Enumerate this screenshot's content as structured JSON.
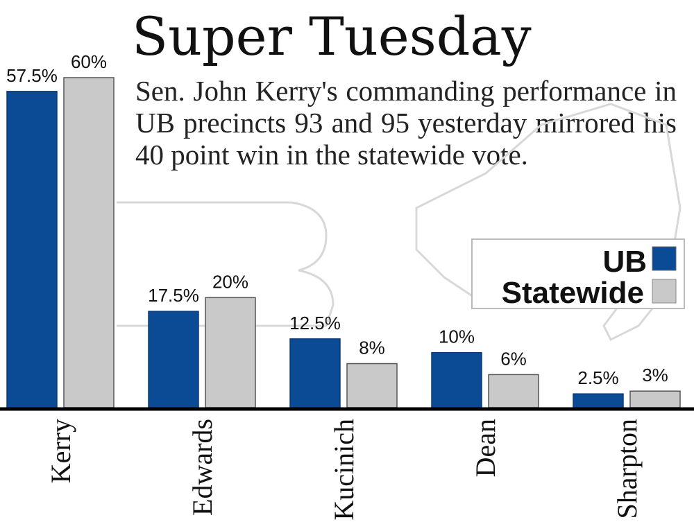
{
  "chart_data": {
    "type": "bar",
    "title": "Super Tuesday",
    "subtitle": "Sen. John Kerry's commanding performance in UB precincts 93 and 95 yesterday mirrored his 40 point win in the statewide vote.",
    "categories": [
      "Kerry",
      "Edwards",
      "Kucinich",
      "Dean",
      "Sharpton"
    ],
    "series": [
      {
        "name": "UB",
        "color": "#0b4a95",
        "values": [
          57.5,
          17.5,
          12.5,
          10,
          2.5
        ],
        "labels": [
          "57.5%",
          "17.5%",
          "12.5%",
          "10%",
          "2.5%"
        ]
      },
      {
        "name": "Statewide",
        "color": "#c9c9c9",
        "values": [
          60,
          20,
          8,
          6,
          3
        ],
        "labels": [
          "60%",
          "20%",
          "8%",
          "6%",
          "3%"
        ]
      }
    ],
    "ylim": [
      0,
      60
    ],
    "grid": false,
    "legend_position": "right",
    "xlabel": "",
    "ylabel": ""
  }
}
